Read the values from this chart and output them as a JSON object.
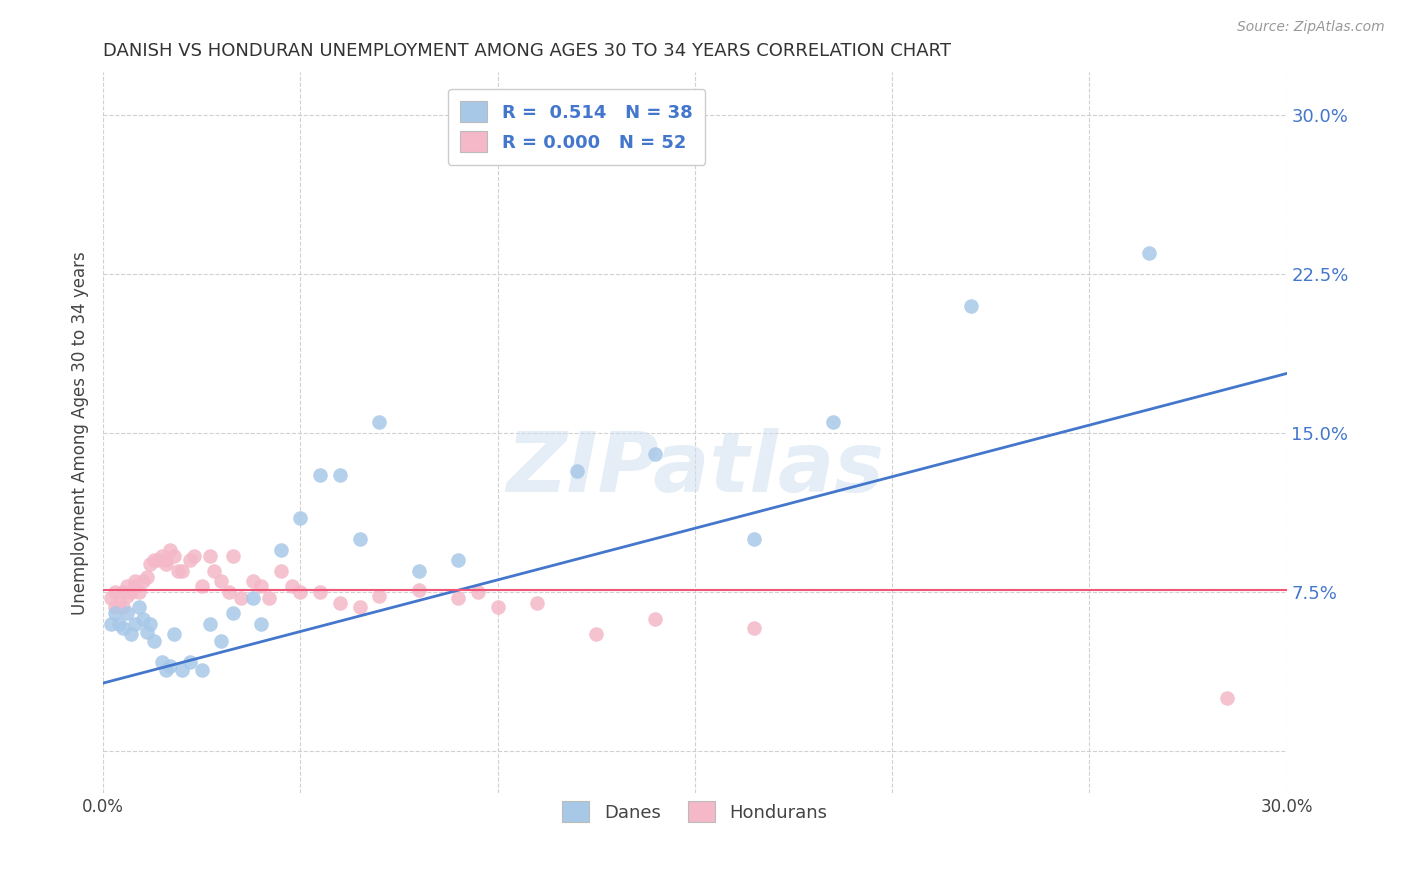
{
  "title": "DANISH VS HONDURAN UNEMPLOYMENT AMONG AGES 30 TO 34 YEARS CORRELATION CHART",
  "source": "Source: ZipAtlas.com",
  "ylabel": "Unemployment Among Ages 30 to 34 years",
  "xlim": [
    0.0,
    0.3
  ],
  "ylim": [
    -0.02,
    0.32
  ],
  "background_color": "#ffffff",
  "grid_color": "#cccccc",
  "danes_color": "#a8c8e8",
  "hondurans_color": "#f4b8c8",
  "line_blue": "#4477cc",
  "line_pink": "#ee5577",
  "danes_R": "0.514",
  "danes_N": "38",
  "hondurans_R": "0.000",
  "hondurans_N": "52",
  "legend_label_danes": "Danes",
  "legend_label_hondurans": "Hondurans",
  "watermark": "ZIPatlas",
  "blue_line_x0": 0.0,
  "blue_line_y0": 0.032,
  "blue_line_x1": 0.3,
  "blue_line_y1": 0.178,
  "pink_line_y": 0.076,
  "danes_x": [
    0.002,
    0.003,
    0.004,
    0.005,
    0.006,
    0.007,
    0.008,
    0.009,
    0.01,
    0.011,
    0.012,
    0.013,
    0.015,
    0.016,
    0.017,
    0.018,
    0.02,
    0.022,
    0.025,
    0.027,
    0.03,
    0.033,
    0.038,
    0.04,
    0.045,
    0.05,
    0.055,
    0.06,
    0.065,
    0.07,
    0.08,
    0.09,
    0.12,
    0.14,
    0.165,
    0.185,
    0.22,
    0.265
  ],
  "danes_y": [
    0.06,
    0.065,
    0.06,
    0.058,
    0.065,
    0.055,
    0.06,
    0.068,
    0.062,
    0.056,
    0.06,
    0.052,
    0.042,
    0.038,
    0.04,
    0.055,
    0.038,
    0.042,
    0.038,
    0.06,
    0.052,
    0.065,
    0.072,
    0.06,
    0.095,
    0.11,
    0.13,
    0.13,
    0.1,
    0.155,
    0.085,
    0.09,
    0.132,
    0.14,
    0.1,
    0.155,
    0.21,
    0.235
  ],
  "hondurans_x": [
    0.002,
    0.003,
    0.003,
    0.004,
    0.005,
    0.005,
    0.006,
    0.006,
    0.007,
    0.008,
    0.008,
    0.009,
    0.01,
    0.011,
    0.012,
    0.013,
    0.014,
    0.015,
    0.016,
    0.016,
    0.017,
    0.018,
    0.019,
    0.02,
    0.022,
    0.023,
    0.025,
    0.027,
    0.028,
    0.03,
    0.032,
    0.033,
    0.035,
    0.038,
    0.04,
    0.042,
    0.045,
    0.048,
    0.05,
    0.055,
    0.06,
    0.065,
    0.07,
    0.08,
    0.09,
    0.095,
    0.1,
    0.11,
    0.125,
    0.14,
    0.165,
    0.285
  ],
  "hondurans_y": [
    0.072,
    0.068,
    0.075,
    0.07,
    0.075,
    0.068,
    0.078,
    0.073,
    0.075,
    0.08,
    0.078,
    0.075,
    0.08,
    0.082,
    0.088,
    0.09,
    0.09,
    0.092,
    0.09,
    0.088,
    0.095,
    0.092,
    0.085,
    0.085,
    0.09,
    0.092,
    0.078,
    0.092,
    0.085,
    0.08,
    0.075,
    0.092,
    0.072,
    0.08,
    0.078,
    0.072,
    0.085,
    0.078,
    0.075,
    0.075,
    0.07,
    0.068,
    0.073,
    0.076,
    0.072,
    0.075,
    0.068,
    0.07,
    0.055,
    0.062,
    0.058,
    0.025
  ]
}
